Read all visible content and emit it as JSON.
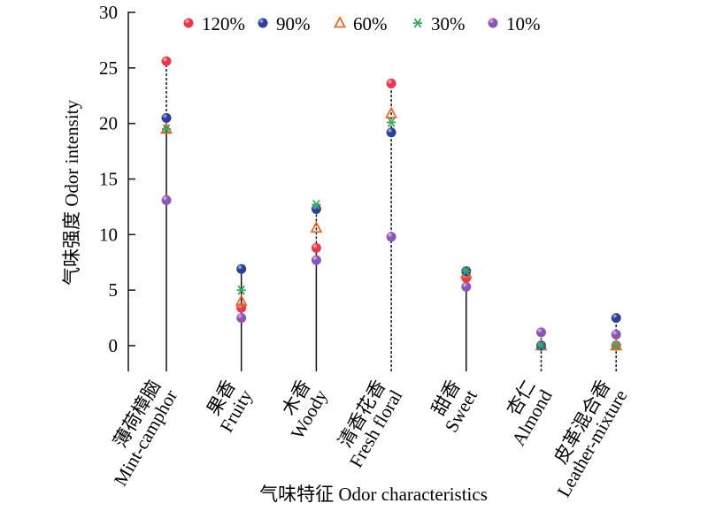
{
  "chart_data": {
    "type": "scatter",
    "title": "",
    "xlabel": "气味特征 Odor characteristics",
    "ylabel": "气味强度 Odor intensity",
    "ylim": [
      -2,
      30
    ],
    "yticks": [
      0,
      5,
      10,
      15,
      20,
      25,
      30
    ],
    "grid": false,
    "legend_position": "top",
    "categories": [
      {
        "zh": "薄荷樟脑",
        "en": "Mint-camphor",
        "solid_to": 19.5
      },
      {
        "zh": "果香",
        "en": "Fruity",
        "solid_to": 6.9
      },
      {
        "zh": "木香",
        "en": "Woody",
        "solid_to": 8.8
      },
      {
        "zh": "清香花香",
        "en": "Fresh floral",
        "solid_to": -2
      },
      {
        "zh": "甜香",
        "en": "Sweet",
        "solid_to": 6.7
      },
      {
        "zh": "杏仁",
        "en": "Almond",
        "solid_to": -2
      },
      {
        "zh": "皮革混合香",
        "en": "Leather-mixture",
        "solid_to": -2
      }
    ],
    "series": [
      {
        "name": "120%",
        "marker": "circle",
        "color": "#e8394a",
        "values": [
          25.6,
          3.4,
          8.8,
          23.6,
          6.1,
          0,
          0
        ]
      },
      {
        "name": "90%",
        "marker": "circle",
        "color": "#2a3f9a",
        "values": [
          20.5,
          6.9,
          12.3,
          19.2,
          6.7,
          0,
          2.5
        ]
      },
      {
        "name": "60%",
        "marker": "triangle",
        "color": "#e8692a",
        "values": [
          19.5,
          4.0,
          10.6,
          20.9,
          6.5,
          0,
          0
        ]
      },
      {
        "name": "30%",
        "marker": "asterisk",
        "color": "#3aa860",
        "values": [
          19.5,
          5.0,
          12.7,
          20.1,
          6.7,
          0,
          0
        ]
      },
      {
        "name": "10%",
        "marker": "circle",
        "color": "#8b55b8",
        "values": [
          13.1,
          2.5,
          7.7,
          9.8,
          5.3,
          1.2,
          1.0
        ]
      }
    ]
  }
}
